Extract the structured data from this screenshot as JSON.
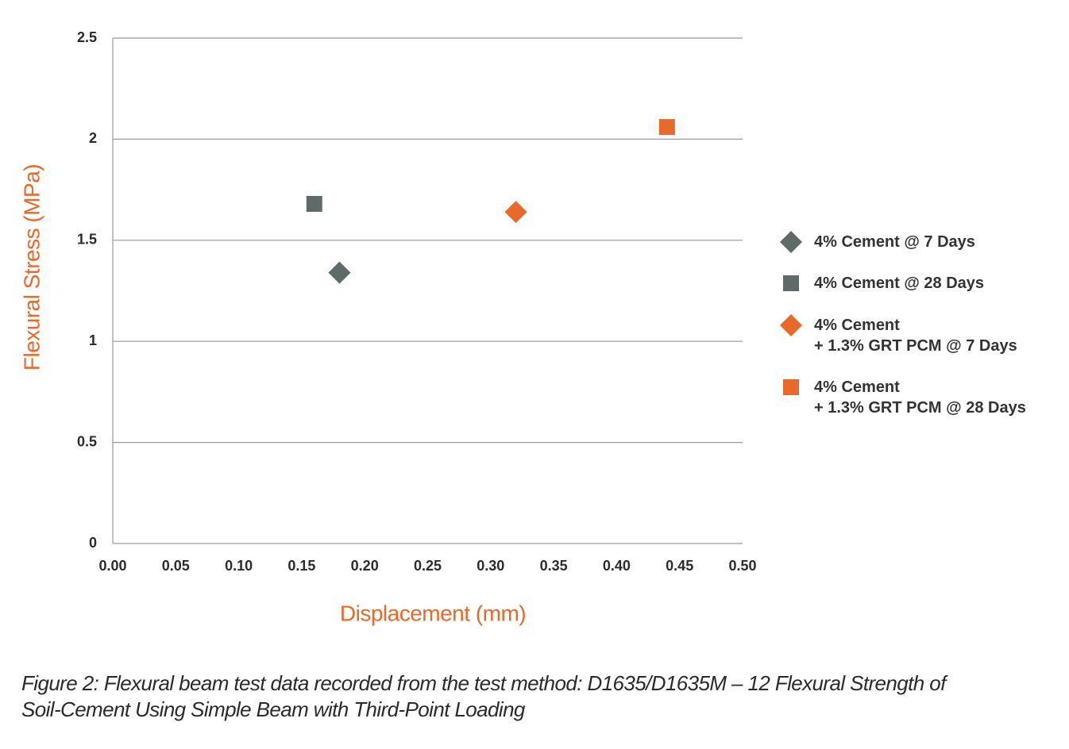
{
  "chart_data": {
    "type": "scatter",
    "xlabel": "Displacement (mm)",
    "ylabel": "Flexural Stress (MPa)",
    "caption": "Figure 2: Flexural beam test data recorded from the test method: D1635/D1635M – 12 Flexural Strength of Soil-Cement Using Simple Beam with Third-Point Loading",
    "xlim": [
      0,
      0.5
    ],
    "ylim": [
      0,
      2.5
    ],
    "xticks": [
      {
        "value": 0,
        "label": "0.00"
      },
      {
        "value": 0.05,
        "label": "0.05"
      },
      {
        "value": 0.1,
        "label": "0.10"
      },
      {
        "value": 0.15,
        "label": "0.15"
      },
      {
        "value": 0.2,
        "label": "0.20"
      },
      {
        "value": 0.25,
        "label": "0.25"
      },
      {
        "value": 0.3,
        "label": "0.30"
      },
      {
        "value": 0.35,
        "label": "0.35"
      },
      {
        "value": 0.4,
        "label": "0.40"
      },
      {
        "value": 0.45,
        "label": "0.45"
      },
      {
        "value": 0.5,
        "label": "0.50"
      }
    ],
    "yticks": [
      0,
      0.5,
      1,
      1.5,
      2,
      2.5
    ],
    "grid": true,
    "legend": "right",
    "series": [
      {
        "name": "4% Cement @ 7 Days",
        "color": "#5f6a6a",
        "marker": "diamond",
        "x": [
          0.18
        ],
        "values": [
          1.34
        ]
      },
      {
        "name": "4% Cement @ 28 Days",
        "color": "#5f6a6a",
        "marker": "square",
        "x": [
          0.16
        ],
        "values": [
          1.68
        ]
      },
      {
        "name": "4% Cement\n+ 1.3% GRT PCM @ 7 Days",
        "color": "#e8692a",
        "marker": "diamond",
        "x": [
          0.32
        ],
        "values": [
          1.64
        ]
      },
      {
        "name": "4% Cement\n+ 1.3% GRT PCM @ 28 Days",
        "color": "#e8692a",
        "marker": "square",
        "x": [
          0.44
        ],
        "values": [
          2.06
        ]
      }
    ]
  }
}
